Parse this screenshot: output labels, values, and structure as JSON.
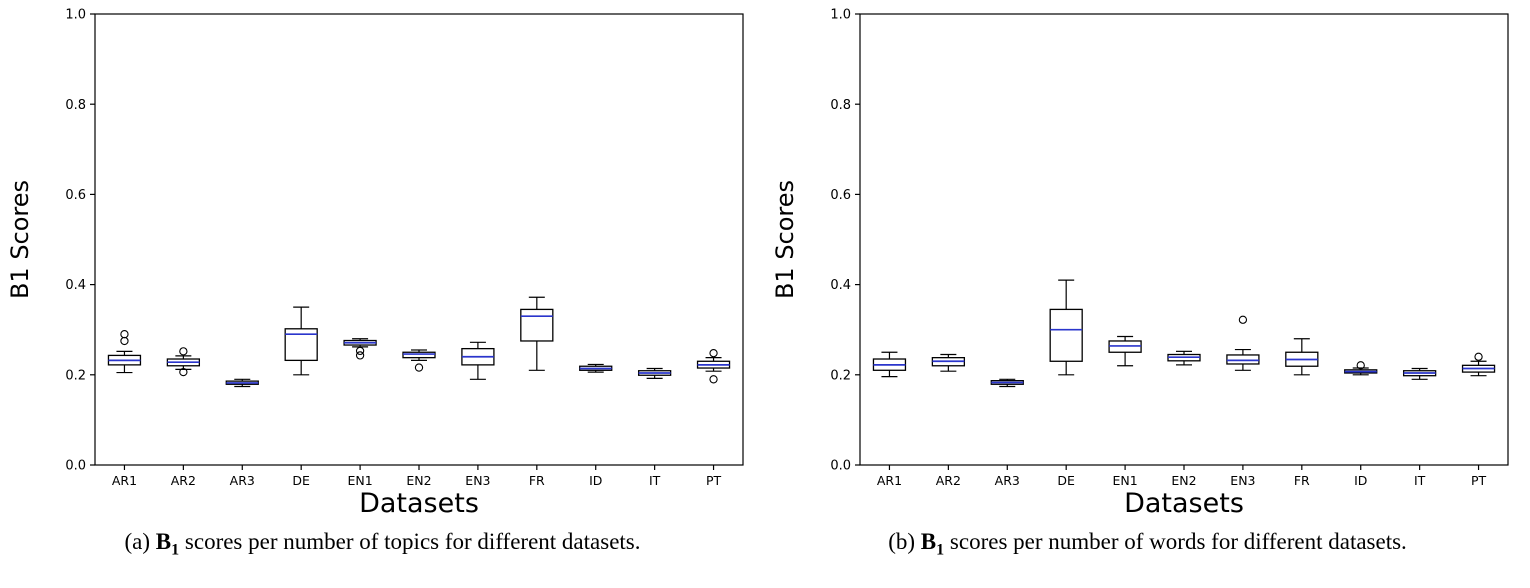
{
  "page": {
    "background": "#ffffff"
  },
  "colors": {
    "box_edge": "#000000",
    "median": "#2a35cc",
    "whisker": "#000000",
    "axis": "#000000",
    "text": "#000000",
    "box_fill": "#ffffff"
  },
  "figures": [
    {
      "caption": {
        "label": "(a)",
        "term": "B",
        "term_sub": "1",
        "text": "scores per number of topics for different datasets."
      }
    },
    {
      "caption": {
        "label": "(b)",
        "term": "B",
        "term_sub": "1",
        "text": "scores per number of words for different datasets."
      }
    }
  ],
  "chart_data": [
    {
      "type": "boxplot",
      "title": "",
      "xlabel": "Datasets",
      "ylabel": "B1 Scores",
      "ylim": [
        0.0,
        1.0
      ],
      "yticks": [
        0.0,
        0.2,
        0.4,
        0.6,
        0.8,
        1.0
      ],
      "grid": false,
      "categories": [
        "AR1",
        "AR2",
        "AR3",
        "DE",
        "EN1",
        "EN2",
        "EN3",
        "FR",
        "ID",
        "IT",
        "PT"
      ],
      "boxes": [
        {
          "whislo": 0.205,
          "q1": 0.222,
          "med": 0.232,
          "q3": 0.243,
          "whishi": 0.252,
          "fliers": [
            0.275,
            0.29
          ]
        },
        {
          "whislo": 0.212,
          "q1": 0.22,
          "med": 0.228,
          "q3": 0.235,
          "whishi": 0.242,
          "fliers": [
            0.252,
            0.206
          ]
        },
        {
          "whislo": 0.174,
          "q1": 0.179,
          "med": 0.182,
          "q3": 0.186,
          "whishi": 0.19,
          "fliers": []
        },
        {
          "whislo": 0.2,
          "q1": 0.232,
          "med": 0.29,
          "q3": 0.302,
          "whishi": 0.35,
          "fliers": []
        },
        {
          "whislo": 0.262,
          "q1": 0.266,
          "med": 0.271,
          "q3": 0.276,
          "whishi": 0.28,
          "fliers": [
            0.253,
            0.243
          ]
        },
        {
          "whislo": 0.232,
          "q1": 0.238,
          "med": 0.246,
          "q3": 0.25,
          "whishi": 0.255,
          "fliers": [
            0.216
          ]
        },
        {
          "whislo": 0.19,
          "q1": 0.222,
          "med": 0.24,
          "q3": 0.258,
          "whishi": 0.272,
          "fliers": []
        },
        {
          "whislo": 0.21,
          "q1": 0.275,
          "med": 0.33,
          "q3": 0.345,
          "whishi": 0.372,
          "fliers": []
        },
        {
          "whislo": 0.206,
          "q1": 0.21,
          "med": 0.214,
          "q3": 0.219,
          "whishi": 0.223,
          "fliers": []
        },
        {
          "whislo": 0.192,
          "q1": 0.199,
          "med": 0.204,
          "q3": 0.209,
          "whishi": 0.214,
          "fliers": []
        },
        {
          "whislo": 0.208,
          "q1": 0.215,
          "med": 0.222,
          "q3": 0.23,
          "whishi": 0.238,
          "fliers": [
            0.248,
            0.19
          ]
        }
      ]
    },
    {
      "type": "boxplot",
      "title": "",
      "xlabel": "Datasets",
      "ylabel": "B1 Scores",
      "ylim": [
        0.0,
        1.0
      ],
      "yticks": [
        0.0,
        0.2,
        0.4,
        0.6,
        0.8,
        1.0
      ],
      "grid": false,
      "categories": [
        "AR1",
        "AR2",
        "AR3",
        "DE",
        "EN1",
        "EN2",
        "EN3",
        "FR",
        "ID",
        "IT",
        "PT"
      ],
      "boxes": [
        {
          "whislo": 0.196,
          "q1": 0.21,
          "med": 0.222,
          "q3": 0.235,
          "whishi": 0.25,
          "fliers": []
        },
        {
          "whislo": 0.208,
          "q1": 0.22,
          "med": 0.23,
          "q3": 0.238,
          "whishi": 0.245,
          "fliers": []
        },
        {
          "whislo": 0.174,
          "q1": 0.179,
          "med": 0.183,
          "q3": 0.187,
          "whishi": 0.19,
          "fliers": []
        },
        {
          "whislo": 0.2,
          "q1": 0.23,
          "med": 0.3,
          "q3": 0.345,
          "whishi": 0.41,
          "fliers": []
        },
        {
          "whislo": 0.22,
          "q1": 0.25,
          "med": 0.264,
          "q3": 0.275,
          "whishi": 0.285,
          "fliers": []
        },
        {
          "whislo": 0.222,
          "q1": 0.231,
          "med": 0.239,
          "q3": 0.245,
          "whishi": 0.252,
          "fliers": []
        },
        {
          "whislo": 0.21,
          "q1": 0.224,
          "med": 0.232,
          "q3": 0.244,
          "whishi": 0.256,
          "fliers": [
            0.322
          ]
        },
        {
          "whislo": 0.2,
          "q1": 0.219,
          "med": 0.234,
          "q3": 0.25,
          "whishi": 0.28,
          "fliers": []
        },
        {
          "whislo": 0.2,
          "q1": 0.204,
          "med": 0.207,
          "q3": 0.211,
          "whishi": 0.215,
          "fliers": [
            0.221
          ]
        },
        {
          "whislo": 0.19,
          "q1": 0.198,
          "med": 0.204,
          "q3": 0.209,
          "whishi": 0.214,
          "fliers": []
        },
        {
          "whislo": 0.198,
          "q1": 0.206,
          "med": 0.214,
          "q3": 0.221,
          "whishi": 0.23,
          "fliers": [
            0.24
          ]
        }
      ]
    }
  ]
}
